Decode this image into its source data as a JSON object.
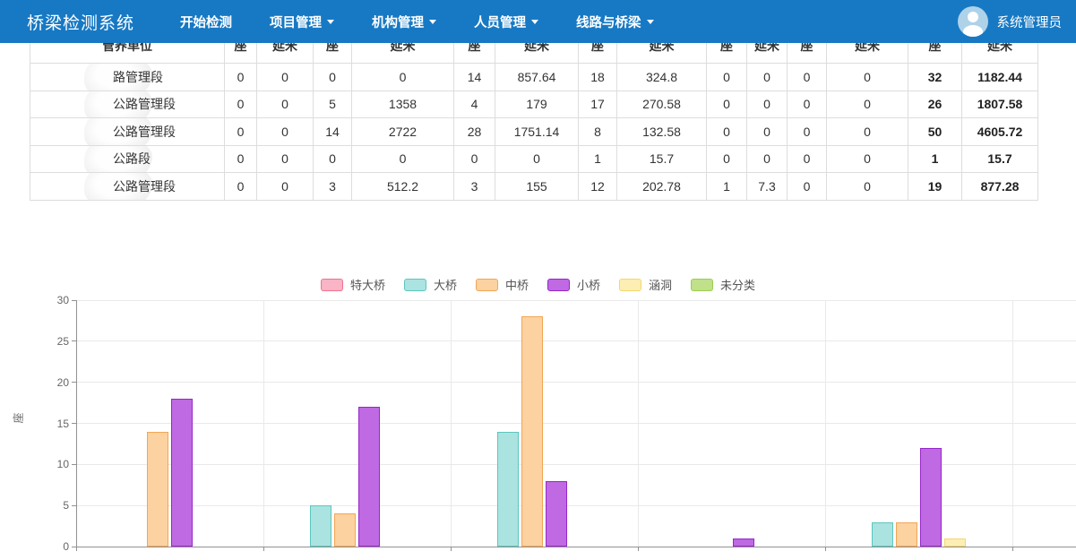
{
  "navbar": {
    "brand": "桥梁检测系统",
    "items": [
      {
        "label": "开始检测",
        "dropdown": false
      },
      {
        "label": "项目管理",
        "dropdown": true
      },
      {
        "label": "机构管理",
        "dropdown": true
      },
      {
        "label": "人员管理",
        "dropdown": true
      },
      {
        "label": "线路与桥梁",
        "dropdown": true
      }
    ],
    "user": "系统管理员",
    "accent_color": "#1779c4"
  },
  "table": {
    "unit_col_header": "管养单位",
    "pair_headers": [
      "座",
      "延米"
    ],
    "pair_count": 7,
    "rows": [
      {
        "name_visible": "路管理段",
        "values": [
          "0",
          "0",
          "0",
          "0",
          "14",
          "857.64",
          "18",
          "324.8",
          "0",
          "0",
          "0",
          "0",
          "32",
          "1182.44"
        ]
      },
      {
        "name_visible": "公路管理段",
        "values": [
          "0",
          "0",
          "5",
          "1358",
          "4",
          "179",
          "17",
          "270.58",
          "0",
          "0",
          "0",
          "0",
          "26",
          "1807.58"
        ]
      },
      {
        "name_visible": "公路管理段",
        "values": [
          "0",
          "0",
          "14",
          "2722",
          "28",
          "1751.14",
          "8",
          "132.58",
          "0",
          "0",
          "0",
          "0",
          "50",
          "4605.72"
        ]
      },
      {
        "name_visible": "公路段",
        "values": [
          "0",
          "0",
          "0",
          "0",
          "0",
          "0",
          "1",
          "15.7",
          "0",
          "0",
          "0",
          "0",
          "1",
          "15.7"
        ]
      },
      {
        "name_visible": "公路管理段",
        "values": [
          "0",
          "0",
          "3",
          "512.2",
          "3",
          "155",
          "12",
          "202.78",
          "1",
          "7.3",
          "0",
          "0",
          "19",
          "877.28"
        ]
      }
    ]
  },
  "chart_data": {
    "type": "bar",
    "title": "",
    "xlabel": "",
    "ylabel": "座",
    "ylim": [
      0,
      30
    ],
    "yticks": [
      0,
      5,
      10,
      15,
      20,
      25,
      30
    ],
    "grid": true,
    "legend_position": "top",
    "categories": [
      "",
      "",
      "",
      "",
      ""
    ],
    "series": [
      {
        "name": "特大桥",
        "fill": "#f9b4c6",
        "border": "#f2708f",
        "values": [
          0,
          0,
          0,
          0,
          0
        ]
      },
      {
        "name": "大桥",
        "fill": "#abe3e0",
        "border": "#5bc6be",
        "values": [
          0,
          5,
          14,
          0,
          3
        ]
      },
      {
        "name": "中桥",
        "fill": "#fcd2a0",
        "border": "#f2a654",
        "values": [
          14,
          4,
          28,
          0,
          3
        ]
      },
      {
        "name": "小桥",
        "fill": "#bf69e3",
        "border": "#9726c9",
        "values": [
          18,
          17,
          8,
          1,
          12
        ]
      },
      {
        "name": "涵洞",
        "fill": "#fdeeb3",
        "border": "#f5d76e",
        "values": [
          0,
          0,
          0,
          0,
          1
        ]
      },
      {
        "name": "未分类",
        "fill": "#c0e08a",
        "border": "#9acd50",
        "values": [
          0,
          0,
          0,
          0,
          0
        ]
      }
    ]
  }
}
